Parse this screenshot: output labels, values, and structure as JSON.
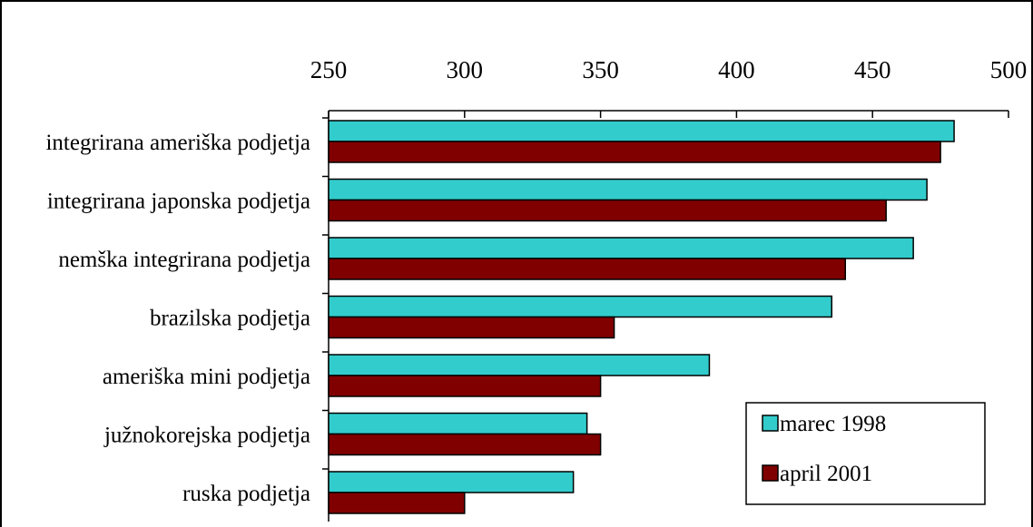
{
  "chart_data": {
    "type": "bar",
    "orientation": "horizontal",
    "categories": [
      "integrirana ameriška podjetja",
      "integrirana japonska podjetja",
      "nemška integrirana podjetja",
      "brazilska podjetja",
      "ameriška mini podjetja",
      "južnokorejska podjetja",
      "ruska podjetja"
    ],
    "series": [
      {
        "name": "marec 1998",
        "color": "#33CCCC",
        "values": [
          480,
          470,
          465,
          435,
          390,
          345,
          340
        ]
      },
      {
        "name": "april 2001",
        "color": "#800000",
        "values": [
          475,
          455,
          440,
          355,
          350,
          350,
          300
        ]
      }
    ],
    "xlim": [
      250,
      500
    ],
    "xticks": [
      250,
      300,
      350,
      400,
      450,
      500
    ],
    "x_axis_position": "top",
    "grid": false,
    "legend_position": "bottom-right"
  }
}
